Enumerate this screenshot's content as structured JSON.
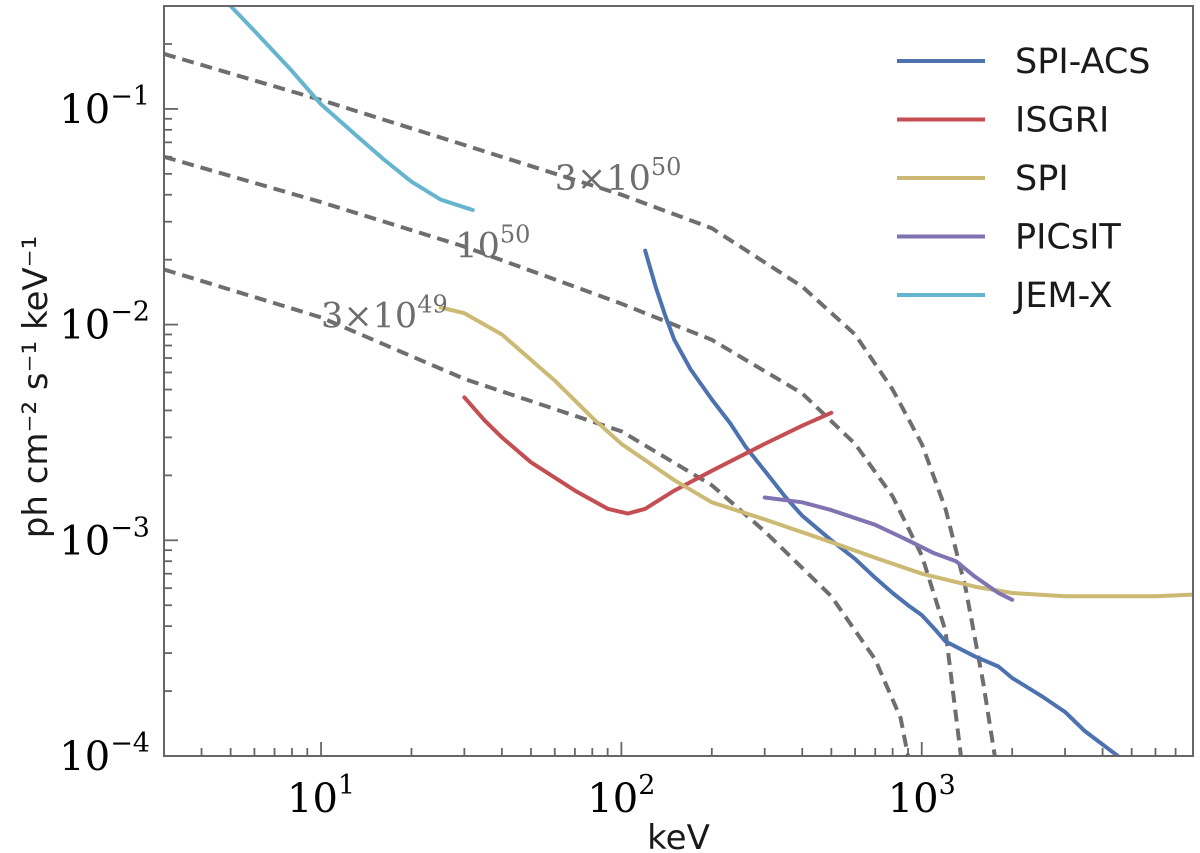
{
  "chart_data": {
    "type": "line",
    "xscale": "log",
    "yscale": "log",
    "xlim": [
      3,
      8000
    ],
    "ylim": [
      0.0001,
      0.3
    ],
    "xlabel": "keV",
    "ylabel": "ph cm⁻² s⁻¹ keV⁻¹",
    "x_ticks": [
      {
        "value": 10,
        "base": "10",
        "exp": "1"
      },
      {
        "value": 100,
        "base": "10",
        "exp": "2"
      },
      {
        "value": 1000,
        "base": "10",
        "exp": "3"
      }
    ],
    "y_ticks": [
      {
        "value": 0.0001,
        "base": "10",
        "exp": "−4"
      },
      {
        "value": 0.001,
        "base": "10",
        "exp": "−3"
      },
      {
        "value": 0.01,
        "base": "10",
        "exp": "−2"
      },
      {
        "value": 0.1,
        "base": "10",
        "exp": "−1"
      }
    ],
    "legend_position": "top-right",
    "series": [
      {
        "name": "SPI-ACS",
        "color": "#4c72b0",
        "style": "solid",
        "points": [
          [
            120,
            0.022
          ],
          [
            130,
            0.015
          ],
          [
            140,
            0.011
          ],
          [
            150,
            0.0085
          ],
          [
            170,
            0.0062
          ],
          [
            200,
            0.0045
          ],
          [
            230,
            0.0035
          ],
          [
            260,
            0.0027
          ],
          [
            300,
            0.0021
          ],
          [
            350,
            0.0016
          ],
          [
            400,
            0.0013
          ],
          [
            500,
            0.001
          ],
          [
            600,
            0.00082
          ],
          [
            700,
            0.00067
          ],
          [
            800,
            0.00057
          ],
          [
            900,
            0.0005
          ],
          [
            1000,
            0.00045
          ],
          [
            1100,
            0.00039
          ],
          [
            1200,
            0.00034
          ],
          [
            1500,
            0.00029
          ],
          [
            1800,
            0.00026
          ],
          [
            2000,
            0.00023
          ],
          [
            2500,
            0.00019
          ],
          [
            3000,
            0.00016
          ],
          [
            3500,
            0.00013
          ],
          [
            4500,
            0.0001
          ]
        ]
      },
      {
        "name": "ISGRI",
        "color": "#c44e52",
        "style": "solid",
        "points": [
          [
            30,
            0.0046
          ],
          [
            35,
            0.0036
          ],
          [
            40,
            0.003
          ],
          [
            50,
            0.0023
          ],
          [
            70,
            0.0017
          ],
          [
            90,
            0.0014
          ],
          [
            105,
            0.00133
          ],
          [
            120,
            0.0014
          ],
          [
            150,
            0.0017
          ],
          [
            200,
            0.0021
          ],
          [
            300,
            0.0028
          ],
          [
            400,
            0.0034
          ],
          [
            500,
            0.0039
          ]
        ]
      },
      {
        "name": "SPI",
        "color": "#ccb974",
        "style": "solid",
        "points": [
          [
            25,
            0.012
          ],
          [
            30,
            0.0113
          ],
          [
            40,
            0.009
          ],
          [
            60,
            0.0055
          ],
          [
            80,
            0.0037
          ],
          [
            100,
            0.0028
          ],
          [
            150,
            0.0019
          ],
          [
            200,
            0.0015
          ],
          [
            300,
            0.00125
          ],
          [
            500,
            0.00098
          ],
          [
            700,
            0.00083
          ],
          [
            1000,
            0.0007
          ],
          [
            1500,
            0.00061
          ],
          [
            2000,
            0.00057
          ],
          [
            3000,
            0.00055
          ],
          [
            4000,
            0.00055
          ],
          [
            6000,
            0.00055
          ],
          [
            8000,
            0.00056
          ]
        ]
      },
      {
        "name": "PICsIT",
        "color": "#8172b2",
        "style": "solid",
        "points": [
          [
            300,
            0.00158
          ],
          [
            400,
            0.0015
          ],
          [
            500,
            0.00138
          ],
          [
            700,
            0.00118
          ],
          [
            900,
            0.001
          ],
          [
            1100,
            0.00087
          ],
          [
            1300,
            0.0008
          ],
          [
            1500,
            0.00068
          ],
          [
            1800,
            0.00057
          ],
          [
            2000,
            0.00053
          ]
        ]
      },
      {
        "name": "JEM-X",
        "color": "#64b5cd",
        "style": "solid",
        "points": [
          [
            5,
            0.3
          ],
          [
            6,
            0.23
          ],
          [
            8,
            0.15
          ],
          [
            10,
            0.105
          ],
          [
            13,
            0.076
          ],
          [
            16,
            0.059
          ],
          [
            20,
            0.046
          ],
          [
            25,
            0.038
          ],
          [
            30,
            0.035
          ],
          [
            32,
            0.034
          ]
        ]
      }
    ],
    "reference_curves": [
      {
        "label": "3×10⁵⁰",
        "label_base": "3×10",
        "label_exp": "50",
        "color": "#6e6e6e",
        "style": "dashed",
        "points": [
          [
            3,
            0.18
          ],
          [
            10,
            0.11
          ],
          [
            30,
            0.068
          ],
          [
            100,
            0.04
          ],
          [
            200,
            0.028
          ],
          [
            400,
            0.015
          ],
          [
            600,
            0.009
          ],
          [
            800,
            0.005
          ],
          [
            1000,
            0.0028
          ],
          [
            1200,
            0.0014
          ],
          [
            1400,
            0.0006
          ],
          [
            1600,
            0.00022
          ],
          [
            1750,
            0.0001
          ]
        ]
      },
      {
        "label": "10⁵⁰",
        "label_base": "10",
        "label_exp": "50",
        "color": "#6e6e6e",
        "style": "dashed",
        "points": [
          [
            3,
            0.06
          ],
          [
            10,
            0.037
          ],
          [
            30,
            0.023
          ],
          [
            100,
            0.0125
          ],
          [
            200,
            0.0085
          ],
          [
            400,
            0.0048
          ],
          [
            600,
            0.0028
          ],
          [
            800,
            0.0016
          ],
          [
            1000,
            0.00085
          ],
          [
            1200,
            0.00038
          ],
          [
            1350,
            0.0001
          ]
        ]
      },
      {
        "label": "3×10⁴⁹",
        "label_base": "3×10",
        "label_exp": "49",
        "color": "#6e6e6e",
        "style": "dashed",
        "points": [
          [
            3,
            0.018
          ],
          [
            10,
            0.0108
          ],
          [
            30,
            0.0056
          ],
          [
            100,
            0.0032
          ],
          [
            200,
            0.0018
          ],
          [
            300,
            0.0011
          ],
          [
            500,
            0.00055
          ],
          [
            700,
            0.00028
          ],
          [
            850,
            0.00015
          ],
          [
            900,
            0.0001
          ]
        ]
      }
    ]
  }
}
